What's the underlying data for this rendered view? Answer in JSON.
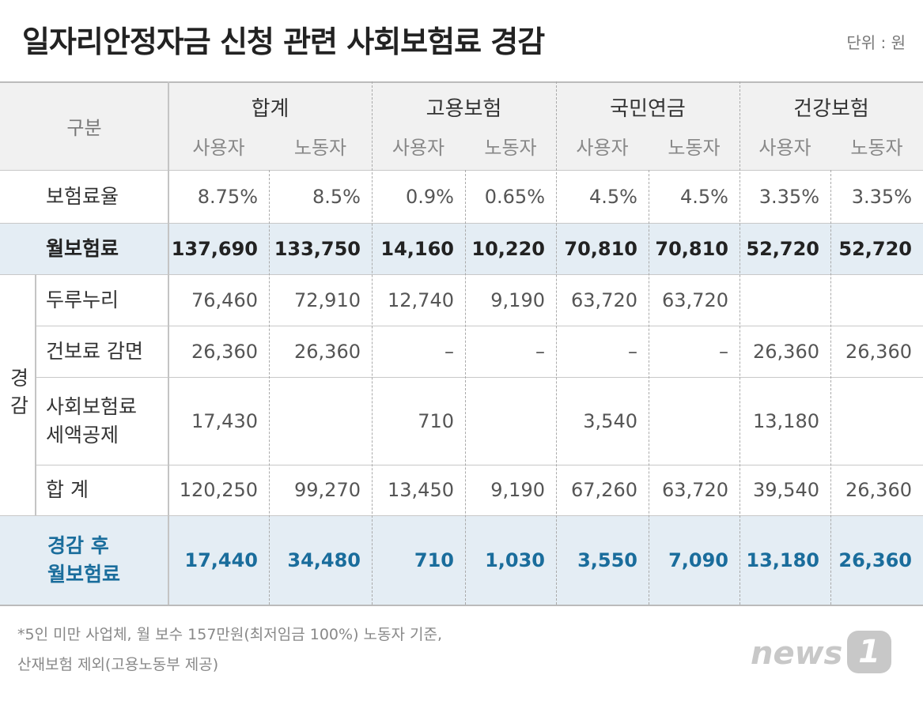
{
  "header": {
    "title": "일자리안정자금 신청 관련 사회보험료 경감",
    "unit": "단위 : 원"
  },
  "table": {
    "corner": "구분",
    "groups": [
      "합계",
      "고용보험",
      "국민연금",
      "건강보험"
    ],
    "subheaders": [
      "사용자",
      "노동자",
      "사용자",
      "노동자",
      "사용자",
      "노동자",
      "사용자",
      "노동자"
    ],
    "section_label": "경감",
    "rows": [
      {
        "label": [
          "보험료율"
        ],
        "cells": [
          "8.75%",
          "8.5%",
          "0.9%",
          "0.65%",
          "4.5%",
          "4.5%",
          "3.35%",
          "3.35%"
        ]
      },
      {
        "label": [
          "월보험료"
        ],
        "cells": [
          "137,690",
          "133,750",
          "14,160",
          "10,220",
          "70,810",
          "70,810",
          "52,720",
          "52,720"
        ]
      },
      {
        "label": [
          "두루누리"
        ],
        "cells": [
          "76,460",
          "72,910",
          "12,740",
          "9,190",
          "63,720",
          "63,720",
          null,
          null
        ]
      },
      {
        "label": [
          "건보료 감면"
        ],
        "cells": [
          "26,360",
          "26,360",
          "–",
          "–",
          "–",
          "–",
          "26,360",
          "26,360"
        ]
      },
      {
        "label": [
          "사회보험료",
          "세액공제"
        ],
        "cells": [
          "17,430",
          null,
          "710",
          null,
          "3,540",
          null,
          "13,180",
          null
        ]
      },
      {
        "label": [
          "합  계"
        ],
        "cells": [
          "120,250",
          "99,270",
          "13,450",
          "9,190",
          "67,260",
          "63,720",
          "39,540",
          "26,360"
        ]
      },
      {
        "label": [
          "경감 후",
          "월보험료"
        ],
        "cells": [
          "17,440",
          "34,480",
          "710",
          "1,030",
          "3,550",
          "7,090",
          "13,180",
          "26,360"
        ]
      }
    ]
  },
  "footnote": [
    "*5인 미만 사업체, 월 보수 157만원(최저임금 100%) 노동자 기준,",
    "산재보험 제외(고용노동부 제공)"
  ],
  "logo": {
    "text": "news",
    "mark": "1"
  }
}
